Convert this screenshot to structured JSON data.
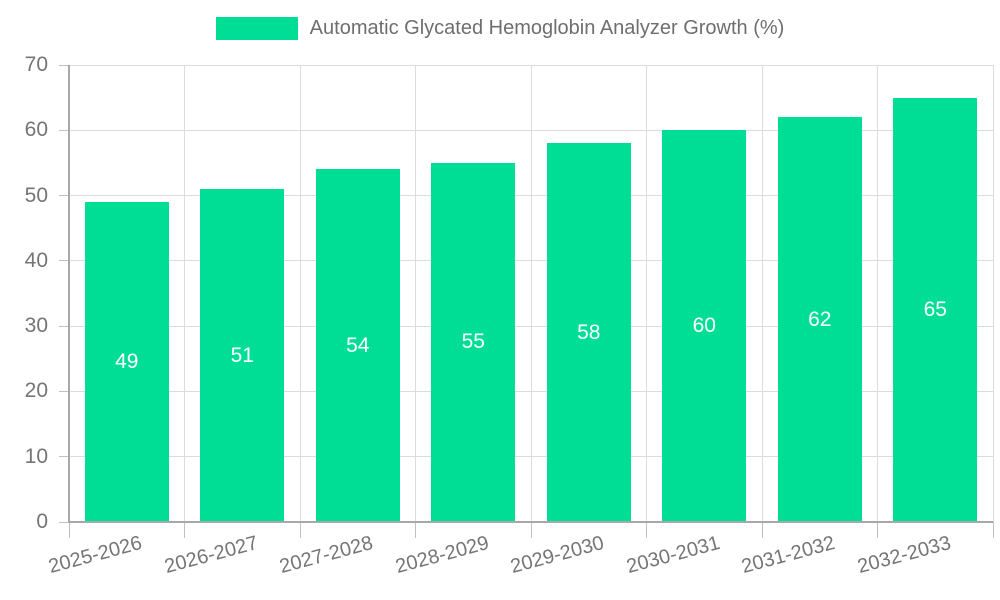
{
  "legend": {
    "label": "Automatic Glycated Hemoglobin Analyzer Growth (%)",
    "swatch_color": "#00de95"
  },
  "chart_data": {
    "type": "bar",
    "title": "Automatic Glycated Hemoglobin Analyzer Growth (%)",
    "categories": [
      "2025-2026",
      "2026-2027",
      "2027-2028",
      "2028-2029",
      "2029-2030",
      "2030-2031",
      "2031-2032",
      "2032-2033"
    ],
    "values": [
      49,
      51,
      54,
      55,
      58,
      60,
      62,
      65
    ],
    "xlabel": "",
    "ylabel": "",
    "ylim": [
      0,
      70
    ],
    "yticks": [
      0,
      10,
      20,
      30,
      40,
      50,
      60,
      70
    ],
    "grid": true,
    "legend_position": "top-center",
    "x_tick_rotation_deg": -15,
    "bar_color": "#00de95",
    "value_label_color": "#ffffff",
    "tick_label_color": "#757575",
    "grid_color": "#dcdcdc",
    "axis_color": "#a8a8a8",
    "background_color": "#ffffff"
  }
}
